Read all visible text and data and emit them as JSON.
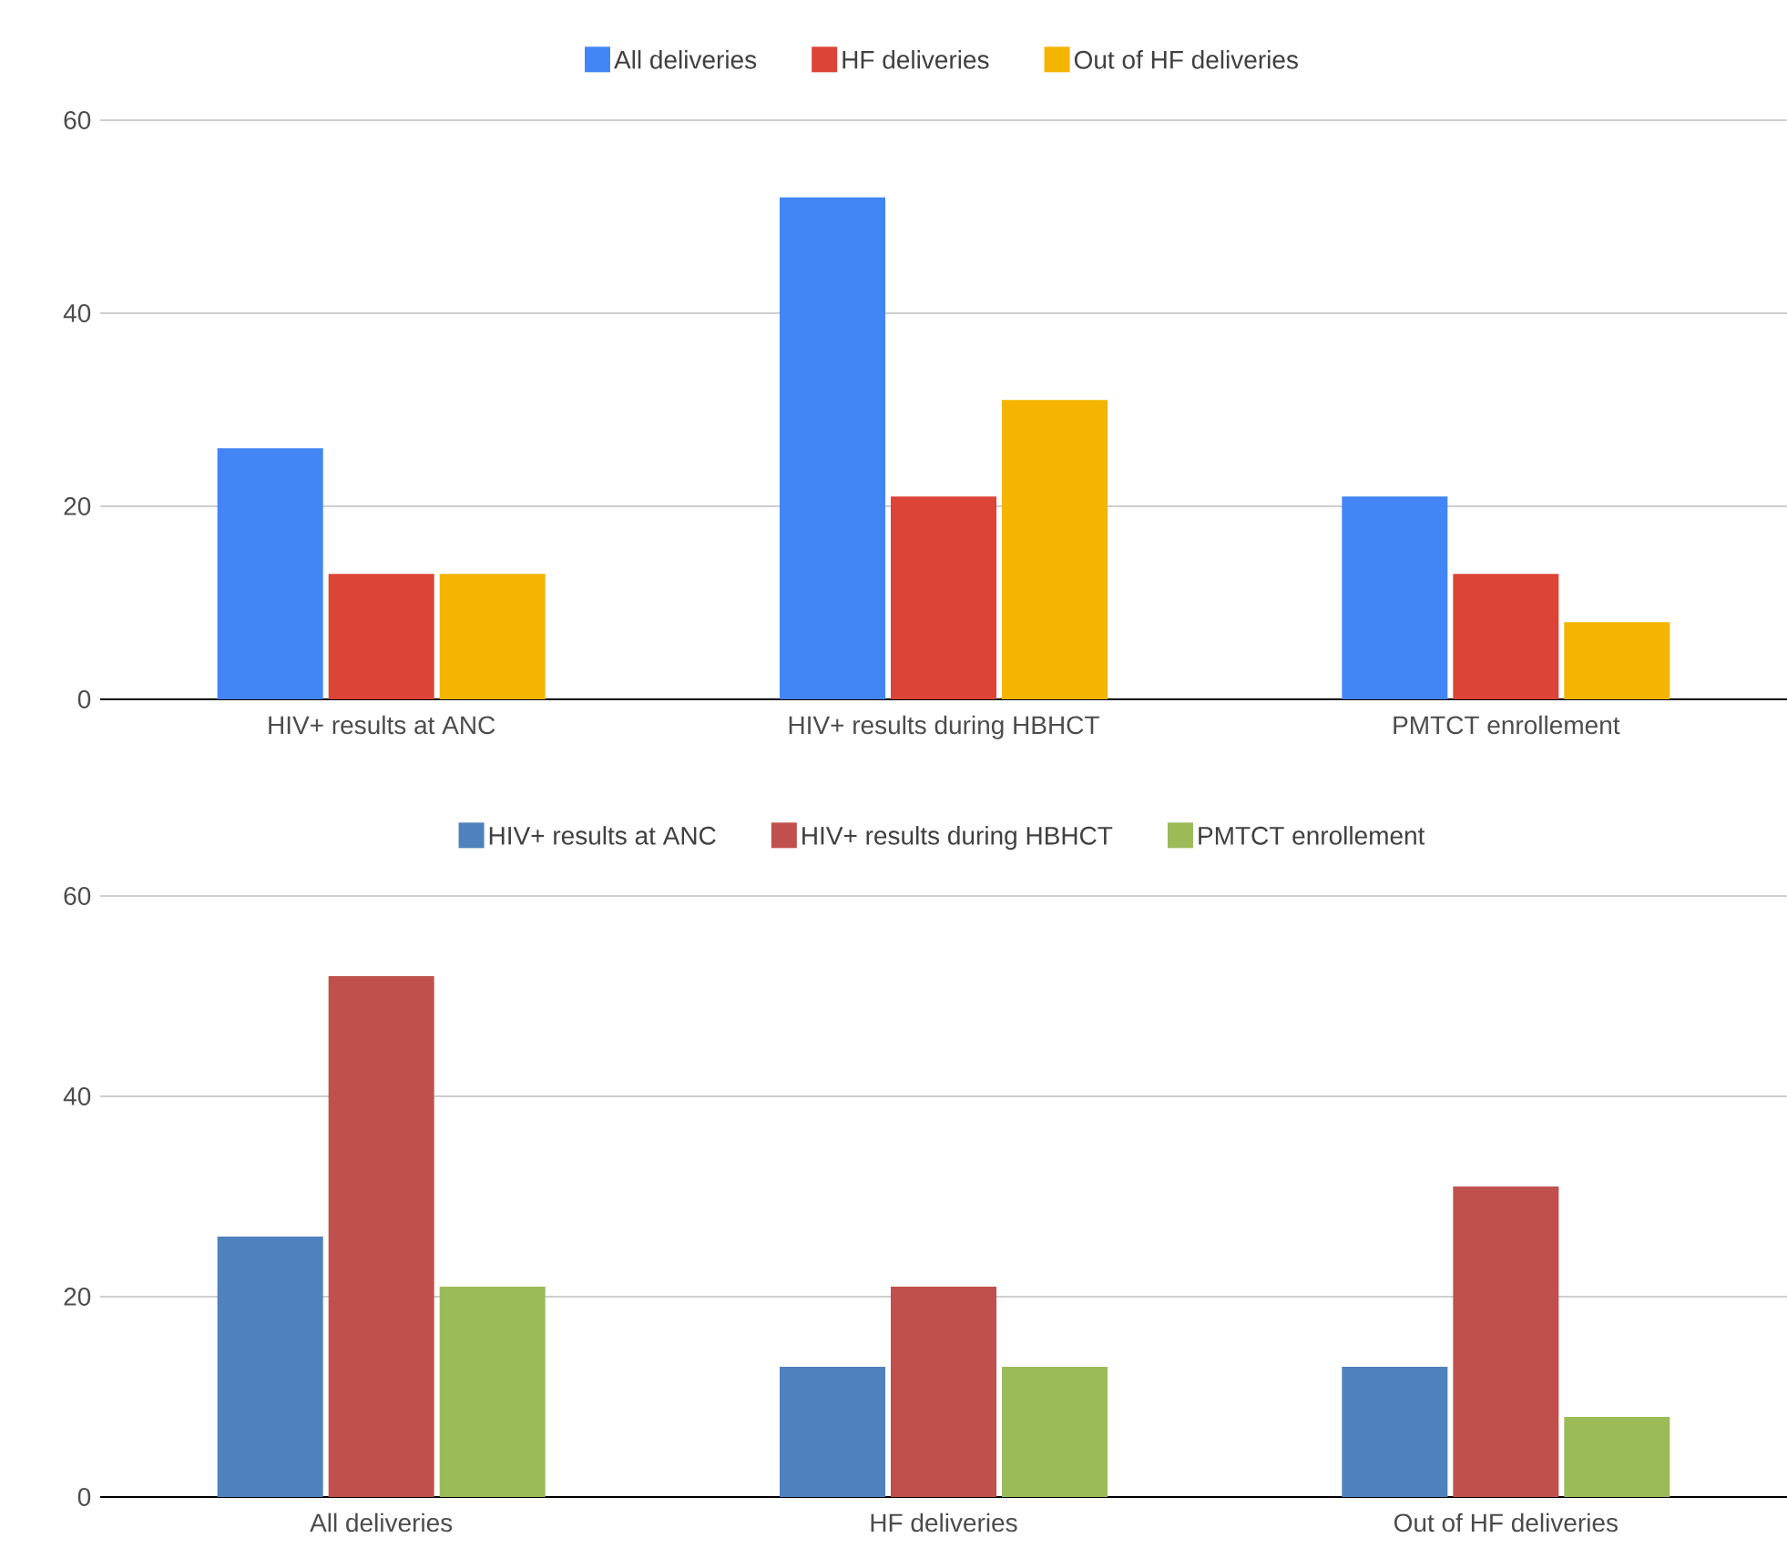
{
  "chart_data": [
    {
      "type": "bar",
      "categories": [
        "HIV+ results at ANC",
        "HIV+ results during HBHCT",
        "PMTCT enrollement"
      ],
      "series": [
        {
          "name": "All deliveries",
          "color": "#4285f4",
          "values": [
            26,
            52,
            21
          ]
        },
        {
          "name": "HF deliveries",
          "color": "#db4437",
          "values": [
            13,
            21,
            13
          ]
        },
        {
          "name": "Out of HF deliveries",
          "color": "#f4b400",
          "values": [
            13,
            31,
            8
          ]
        }
      ],
      "ylim": [
        0,
        60
      ],
      "yticks": [
        0,
        20,
        40,
        60
      ],
      "grid": "y",
      "legend": "top"
    },
    {
      "type": "bar",
      "categories": [
        "All deliveries",
        "HF deliveries",
        "Out of HF deliveries"
      ],
      "series": [
        {
          "name": "HIV+ results at ANC",
          "color": "#4f81bd",
          "values": [
            26,
            13,
            13
          ]
        },
        {
          "name": "HIV+ results during HBHCT",
          "color": "#c0504d",
          "values": [
            52,
            21,
            31
          ]
        },
        {
          "name": "PMTCT enrollement",
          "color": "#9bbb59",
          "values": [
            21,
            13,
            8
          ]
        }
      ],
      "ylim": [
        0,
        60
      ],
      "yticks": [
        0,
        20,
        40,
        60
      ],
      "grid": "y",
      "legend": "top"
    }
  ]
}
